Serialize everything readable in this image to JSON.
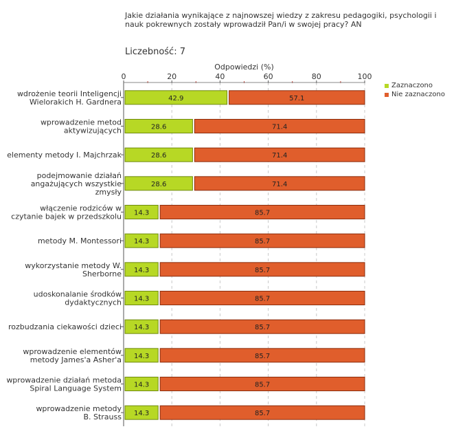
{
  "question": "Jakie działania wynikające z najnowszej wiedzy z zakresu pedagogiki, psychologii i nauk pokrewnych zostały wprowadził Pan/i w swojej pracy? AN",
  "count_label": "Liczebność:",
  "count_value": "7",
  "legend": [
    {
      "label": "Zaznaczono",
      "color": "#b7d825"
    },
    {
      "label": "Nie zaznaczono",
      "color": "#e05e2c"
    }
  ],
  "chart_data": {
    "type": "bar",
    "orientation": "horizontal",
    "stacked": true,
    "xlabel": "Odpowiedzi (%)",
    "xlim": [
      0,
      100
    ],
    "xticks": [
      0,
      20,
      40,
      60,
      80,
      100
    ],
    "categories": [
      [
        "wdrożenie teorii Inteligencji",
        "Wielorakich H. Gardnera"
      ],
      [
        "wprowadzenie metod",
        "aktywizujących"
      ],
      [
        "elementy metody I. Majchrzak"
      ],
      [
        "podejmowanie działań",
        "angażujących wszystkie",
        "zmysły"
      ],
      [
        "włączenie rodziców w",
        "czytanie bajek w przedszkolu"
      ],
      [
        "metody M. Montessori"
      ],
      [
        "wykorzystanie metody W.",
        "Sherborne"
      ],
      [
        "udoskonalanie środków",
        "dydaktycznych"
      ],
      [
        "rozbudzania ciekawości dzieci"
      ],
      [
        "wprowadzenie elementów",
        "metody    James'a Asher'a"
      ],
      [
        "wprowadzenie działań metoda",
        "Spiral Language System"
      ],
      [
        "wprowadzenie metody",
        "B. Strauss"
      ]
    ],
    "series": [
      {
        "name": "Zaznaczono",
        "color": "#b7d825",
        "border": "#6f8a10",
        "values": [
          42.9,
          28.6,
          28.6,
          28.6,
          14.3,
          14.3,
          14.3,
          14.3,
          14.3,
          14.3,
          14.3,
          14.3
        ]
      },
      {
        "name": "Nie zaznaczono",
        "color": "#e05e2c",
        "border": "#8a2c0c",
        "values": [
          57.1,
          71.4,
          71.4,
          71.4,
          85.7,
          85.7,
          85.7,
          85.7,
          85.7,
          85.7,
          85.7,
          85.7
        ]
      }
    ]
  }
}
